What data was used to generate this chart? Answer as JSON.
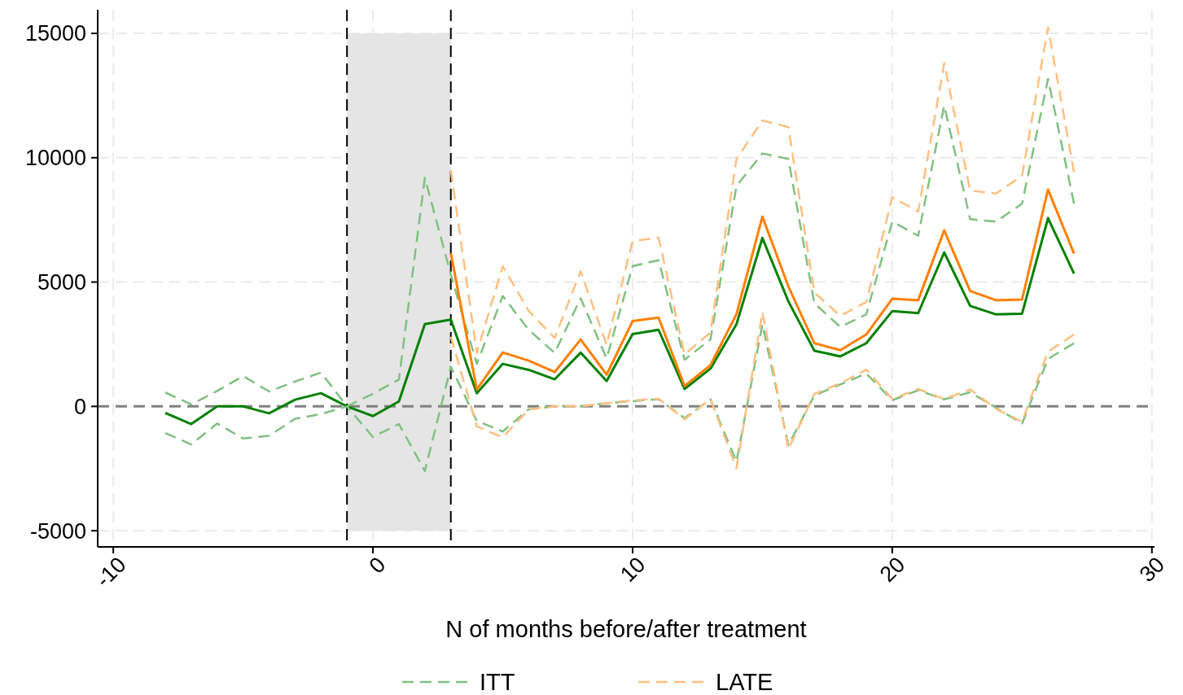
{
  "chart_data": {
    "type": "line",
    "xlabel": "N of months before/after treatment",
    "xlim": [
      -10.6,
      30.1
    ],
    "xticks": [
      -10,
      0,
      10,
      20,
      30
    ],
    "ylim": [
      -5650,
      15950
    ],
    "yticks": [
      -5000,
      0,
      5000,
      10000,
      15000
    ],
    "grid": true,
    "legend": "bottom",
    "ref_lines": [
      {
        "axis": "y",
        "value": 0,
        "color": "#808080",
        "line_style": "dashed"
      },
      {
        "axis": "x",
        "value": -1,
        "color": "#000000",
        "line_style": "dashed"
      },
      {
        "axis": "x",
        "value": 3,
        "color": "#000000",
        "line_style": "dashed"
      }
    ],
    "bands": [
      {
        "axis": "x",
        "from": -1,
        "to": 3,
        "color": "#e5e5e5"
      }
    ],
    "series": [
      {
        "color": "#008000",
        "line_style": "solid",
        "x": [
          -8,
          -7,
          -6,
          -5,
          -4,
          -3,
          -2,
          -1,
          0,
          1,
          2,
          3,
          4,
          5,
          6,
          7,
          8,
          9,
          10,
          11,
          12,
          13,
          14,
          15,
          16,
          17,
          18,
          19,
          20,
          21,
          22,
          23,
          24,
          25,
          26,
          27
        ],
        "values": [
          -260,
          -710,
          0,
          0,
          -280,
          270,
          530,
          0,
          -390,
          200,
          3310,
          3490,
          530,
          1710,
          1470,
          1090,
          2160,
          1020,
          2910,
          3080,
          700,
          1520,
          3300,
          6770,
          4220,
          2240,
          2010,
          2540,
          3830,
          3750,
          6190,
          4040,
          3700,
          3730,
          7570,
          5340
        ]
      },
      {
        "name": "ITT",
        "color": "#80c080",
        "line_style": "dashed",
        "x": [
          -8,
          -7,
          -6,
          -5,
          -4,
          -3,
          -2,
          -1,
          0,
          1,
          2,
          3,
          4,
          5,
          6,
          7,
          8,
          9,
          10,
          11,
          12,
          13,
          14,
          15,
          16,
          17,
          18,
          19,
          20,
          21,
          22,
          23,
          24,
          25,
          26,
          27
        ],
        "values": [
          560,
          80,
          620,
          1220,
          600,
          1000,
          1360,
          0,
          510,
          1080,
          9190,
          5300,
          1710,
          4440,
          3080,
          2150,
          4350,
          1930,
          5640,
          5880,
          1880,
          2690,
          8860,
          10170,
          9950,
          4140,
          3200,
          3700,
          7430,
          6860,
          12100,
          7530,
          7430,
          8150,
          13170,
          8150
        ]
      },
      {
        "color": "#80c080",
        "line_style": "dashed",
        "x": [
          -8,
          -7,
          -6,
          -5,
          -4,
          -3,
          -2,
          -1,
          0,
          1,
          2,
          3,
          4,
          5,
          6,
          7,
          8,
          9,
          10,
          11,
          12,
          13,
          14,
          15,
          16,
          17,
          18,
          19,
          20,
          21,
          22,
          23,
          24,
          25,
          26,
          27
        ],
        "values": [
          -1070,
          -1530,
          -690,
          -1290,
          -1180,
          -500,
          -310,
          0,
          -1230,
          -710,
          -2600,
          1600,
          -580,
          -1010,
          -120,
          0,
          0,
          130,
          210,
          290,
          -470,
          290,
          -2220,
          3300,
          -1560,
          440,
          880,
          1320,
          250,
          650,
          280,
          570,
          -60,
          -690,
          1910,
          2540
        ]
      },
      {
        "color": "#ff7f00",
        "line_style": "solid",
        "x": [
          3,
          4,
          5,
          6,
          7,
          8,
          9,
          10,
          11,
          12,
          13,
          14,
          15,
          16,
          17,
          18,
          19,
          20,
          21,
          22,
          23,
          24,
          25,
          26,
          27
        ],
        "values": [
          6160,
          680,
          2170,
          1840,
          1380,
          2690,
          1280,
          3430,
          3570,
          820,
          1660,
          3710,
          7630,
          4820,
          2540,
          2260,
          2890,
          4330,
          4270,
          7080,
          4640,
          4270,
          4300,
          8720,
          6150
        ]
      },
      {
        "name": "LATE",
        "color": "#ffbf80",
        "line_style": "dashed",
        "x": [
          3,
          4,
          5,
          6,
          7,
          8,
          9,
          10,
          11,
          12,
          13,
          14,
          15,
          16,
          17,
          18,
          19,
          20,
          21,
          22,
          23,
          24,
          25,
          26,
          27
        ],
        "values": [
          9500,
          2150,
          5640,
          3840,
          2750,
          5440,
          2480,
          6640,
          6790,
          2090,
          2970,
          9950,
          11500,
          11230,
          4580,
          3640,
          4200,
          8410,
          7840,
          13800,
          8680,
          8560,
          9280,
          15240,
          9410
        ]
      },
      {
        "color": "#ffbf80",
        "line_style": "dashed",
        "x": [
          3,
          4,
          5,
          6,
          7,
          8,
          9,
          10,
          11,
          12,
          13,
          14,
          15,
          16,
          17,
          18,
          19,
          20,
          21,
          22,
          23,
          24,
          25,
          26,
          27
        ],
        "values": [
          2800,
          -800,
          -1250,
          -120,
          0,
          0,
          130,
          240,
          310,
          -520,
          290,
          -2490,
          3790,
          -1720,
          500,
          930,
          1480,
          300,
          700,
          300,
          680,
          -100,
          -620,
          2200,
          2890
        ]
      }
    ]
  }
}
